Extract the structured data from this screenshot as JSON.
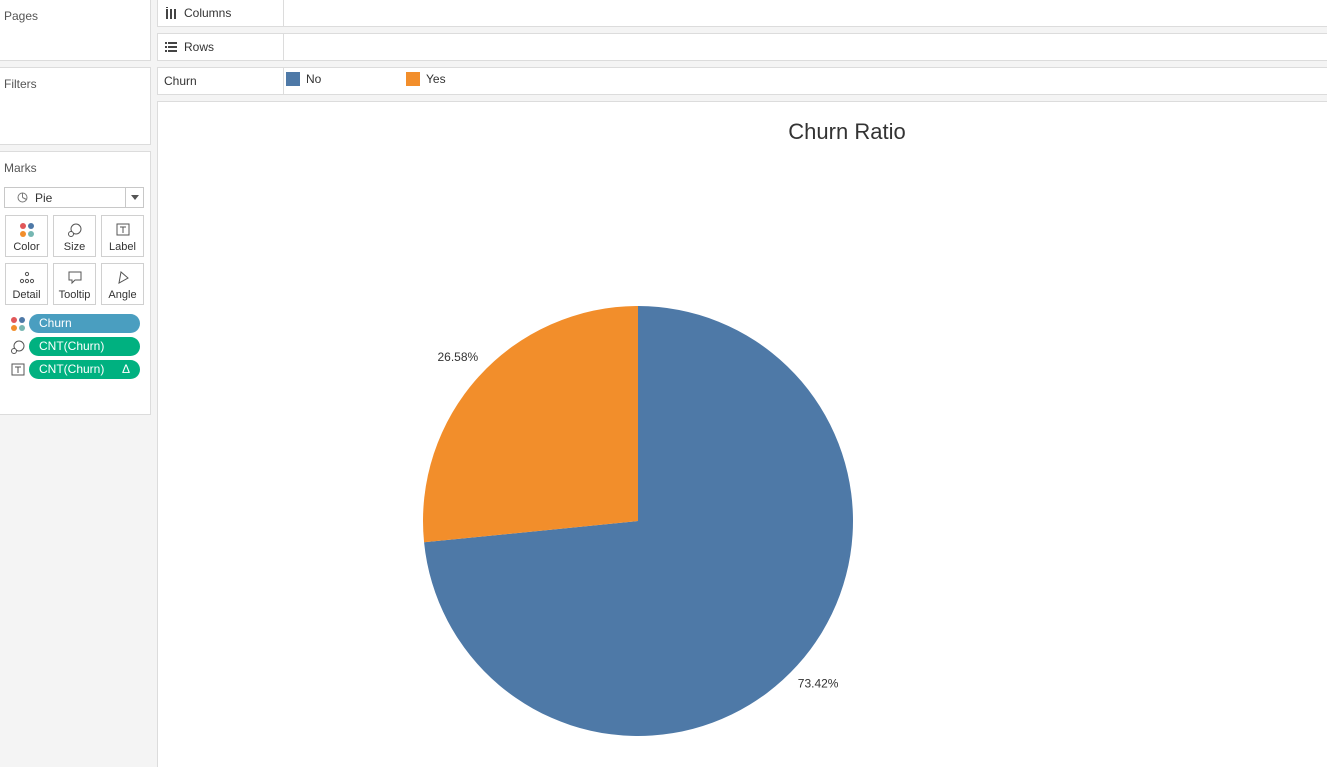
{
  "panels": {
    "pages": "Pages",
    "filters": "Filters",
    "marks": "Marks"
  },
  "marks": {
    "type": "Pie",
    "buttons": [
      {
        "label": "Color",
        "icon": "color-icon"
      },
      {
        "label": "Size",
        "icon": "size-icon"
      },
      {
        "label": "Label",
        "icon": "label-icon"
      },
      {
        "label": "Detail",
        "icon": "detail-icon"
      },
      {
        "label": "Tooltip",
        "icon": "tooltip-icon"
      },
      {
        "label": "Angle",
        "icon": "angle-icon"
      }
    ],
    "pills": [
      {
        "text": "Churn",
        "kind": "dimension",
        "icon": "color-icon"
      },
      {
        "text": "CNT(Churn)",
        "kind": "measure",
        "icon": "size-icon"
      },
      {
        "text": "CNT(Churn)",
        "kind": "measure",
        "icon": "label-icon",
        "suffix": "Δ"
      }
    ]
  },
  "shelves": {
    "columns": "Columns",
    "rows": "Rows"
  },
  "legend": {
    "field": "Churn",
    "items": [
      {
        "label": "No",
        "color": "#4e79a7"
      },
      {
        "label": "Yes",
        "color": "#f28e2b"
      }
    ]
  },
  "chart_data": {
    "type": "pie",
    "title": "Churn Ratio",
    "categories": [
      "No",
      "Yes"
    ],
    "values": [
      73.42,
      26.58
    ],
    "labels": [
      "73.42%",
      "26.58%"
    ],
    "colors": [
      "#4e79a7",
      "#f28e2b"
    ]
  }
}
